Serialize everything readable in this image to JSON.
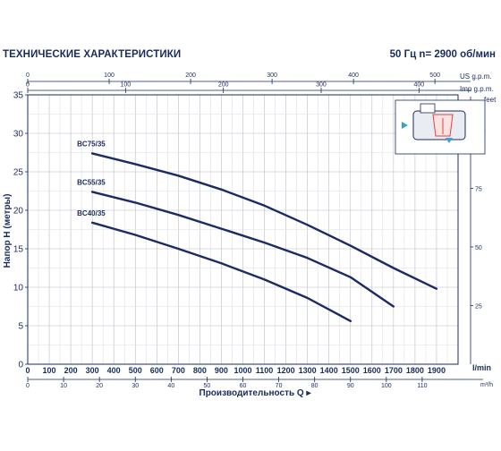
{
  "header": {
    "title": "ТЕХНИЧЕСКИЕ ХАРАКТЕРИСТИКИ",
    "frequency": "50 Гц  n= 2900 об/мин"
  },
  "axes": {
    "us_gpm_label": "US g.p.m.",
    "imp_gpm_label": "Imp g.p.m.",
    "feet_label": "feet",
    "lmin_label": "l/min",
    "m3h_label": "m³/h",
    "y_title": "Напор H  (метры)",
    "x_title": "Производительность  Q ▸"
  },
  "chart_data": {
    "type": "line",
    "xlabel": "Производительность Q",
    "ylabel": "Напор H (метры)",
    "x_unit": "l/min",
    "xlim": [
      0,
      2000
    ],
    "ylim": [
      0,
      35
    ],
    "grid": true,
    "x_ticks": [
      0,
      100,
      200,
      300,
      400,
      500,
      600,
      700,
      800,
      900,
      1000,
      1100,
      1200,
      1300,
      1400,
      1500,
      1600,
      1700,
      1800,
      1900
    ],
    "y_ticks": [
      0,
      5,
      10,
      15,
      20,
      25,
      30,
      35
    ],
    "top_us_ticks": [
      0,
      100,
      200,
      300,
      400,
      500
    ],
    "top_imp_ticks": [
      0,
      100,
      200,
      300,
      400
    ],
    "m3h_ticks": [
      0,
      10,
      20,
      30,
      40,
      50,
      60,
      70,
      80,
      90,
      100,
      110
    ],
    "feet_ticks": [
      25,
      50,
      75,
      100
    ],
    "series": [
      {
        "name": "BC75/35",
        "x": [
          300,
          500,
          700,
          900,
          1100,
          1300,
          1500,
          1700,
          1900
        ],
        "y": [
          27.4,
          26.0,
          24.5,
          22.7,
          20.6,
          18.1,
          15.4,
          12.5,
          9.8
        ]
      },
      {
        "name": "BC55/35",
        "x": [
          300,
          500,
          700,
          900,
          1100,
          1300,
          1500,
          1700
        ],
        "y": [
          22.4,
          21.0,
          19.4,
          17.6,
          15.8,
          13.8,
          11.3,
          7.5
        ]
      },
      {
        "name": "BC40/35",
        "x": [
          300,
          500,
          700,
          900,
          1100,
          1300,
          1500
        ],
        "y": [
          18.4,
          16.8,
          15.0,
          13.1,
          11.0,
          8.6,
          5.6
        ]
      }
    ]
  }
}
